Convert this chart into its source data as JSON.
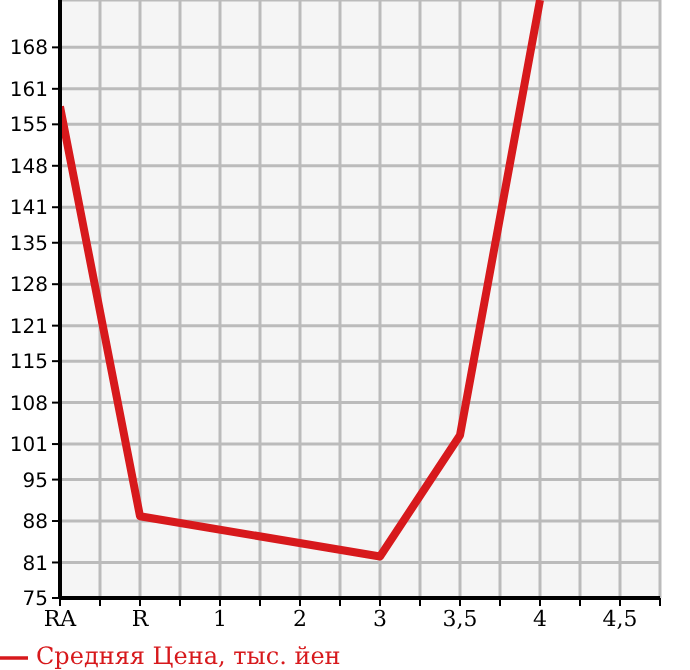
{
  "chart_data": {
    "type": "line",
    "categories": [
      "RA",
      "R",
      "1",
      "2",
      "3",
      "3,5",
      "4",
      "4,5"
    ],
    "series": [
      {
        "name": "Средняя Цена, тыс. йен",
        "color": "#d7191c",
        "values": [
          158,
          88.8,
          null,
          null,
          82,
          102.5,
          176,
          null
        ]
      }
    ],
    "ylim": [
      75,
      176
    ],
    "yticks": [
      75,
      81,
      88,
      95,
      101,
      108,
      115,
      121,
      128,
      135,
      141,
      148,
      155,
      161,
      168
    ],
    "grid": true,
    "legend": "bottom",
    "marker": "none",
    "line_style": "solid"
  }
}
